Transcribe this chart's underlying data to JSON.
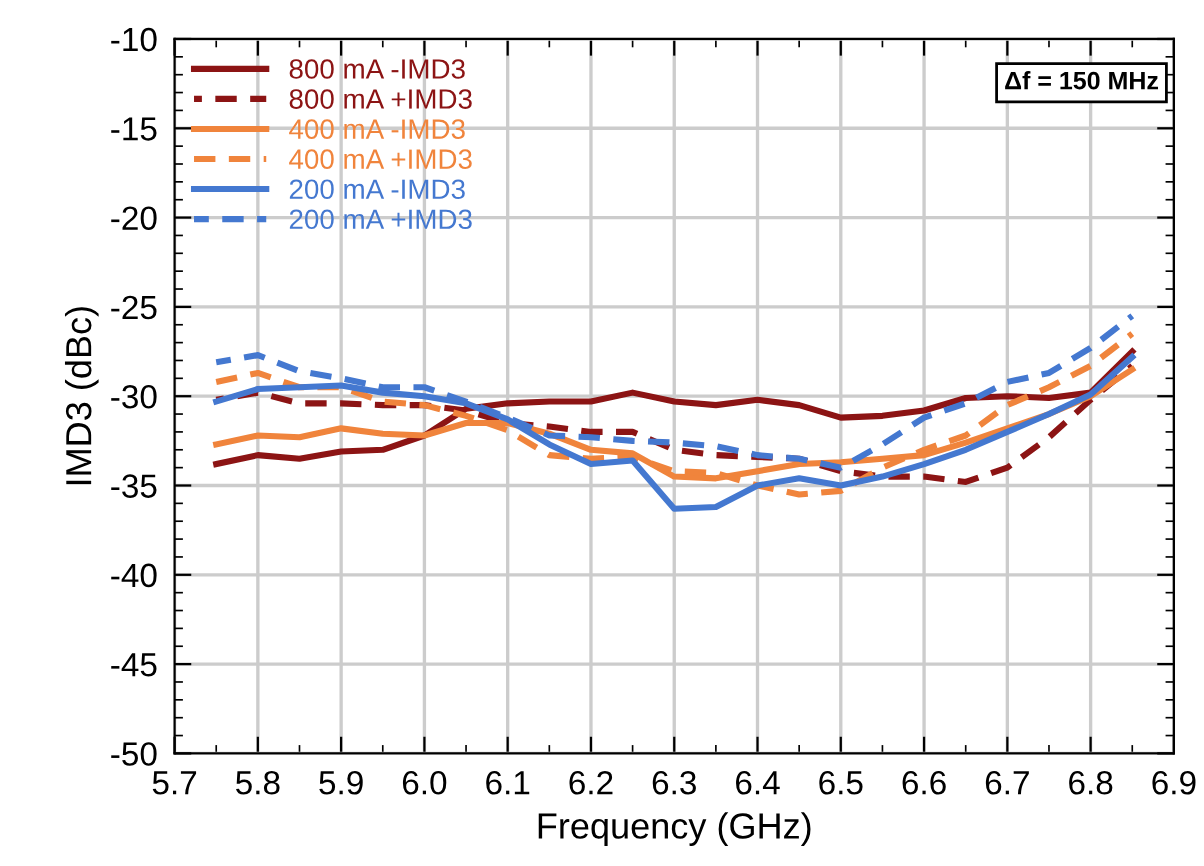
{
  "chart_data": {
    "type": "line",
    "xlabel": "Frequency (GHz)",
    "ylabel": "IMD3 (dBc)",
    "x": [
      5.75,
      5.8,
      5.85,
      5.9,
      5.95,
      6.0,
      6.05,
      6.1,
      6.15,
      6.2,
      6.25,
      6.3,
      6.35,
      6.4,
      6.45,
      6.5,
      6.55,
      6.6,
      6.65,
      6.7,
      6.75,
      6.8,
      6.85
    ],
    "series": [
      {
        "name": "800 mA -IMD3",
        "color": "#8c1414",
        "line_style": "solid",
        "values": [
          -33.8,
          -33.3,
          -33.5,
          -33.1,
          -33.0,
          -32.2,
          -30.7,
          -30.4,
          -30.3,
          -30.3,
          -29.8,
          -30.3,
          -30.5,
          -30.2,
          -30.5,
          -31.2,
          -31.1,
          -30.8,
          -30.1,
          -30.0,
          -30.1,
          -29.8,
          -27.5
        ]
      },
      {
        "name": "800 mA +IMD3",
        "color": "#8c1414",
        "line_style": "dashed",
        "values": [
          -30.2,
          -29.8,
          -30.4,
          -30.4,
          -30.5,
          -30.5,
          -30.8,
          -31.5,
          -31.7,
          -32.0,
          -32.0,
          -33.0,
          -33.3,
          -33.4,
          -33.5,
          -34.2,
          -34.5,
          -34.5,
          -34.8,
          -34.0,
          -32.3,
          -30.2,
          -28.3
        ]
      },
      {
        "name": "400 mA -IMD3",
        "color": "#f0843c",
        "line_style": "solid",
        "values": [
          -32.7,
          -32.2,
          -32.3,
          -31.8,
          -32.1,
          -32.2,
          -31.5,
          -31.5,
          -32.1,
          -33.0,
          -33.2,
          -34.5,
          -34.6,
          -34.2,
          -33.8,
          -33.7,
          -33.5,
          -33.3,
          -32.6,
          -31.8,
          -31.0,
          -30.0,
          -28.5
        ]
      },
      {
        "name": "400 mA +IMD3",
        "color": "#f0843c",
        "line_style": "dashed",
        "values": [
          -29.2,
          -28.7,
          -29.5,
          -29.5,
          -30.3,
          -30.5,
          -31.1,
          -31.9,
          -33.3,
          -33.5,
          -33.4,
          -34.2,
          -34.3,
          -35.0,
          -35.5,
          -35.3,
          -34.0,
          -33.0,
          -32.2,
          -30.5,
          -29.5,
          -28.3,
          -26.5
        ]
      },
      {
        "name": "200 mA -IMD3",
        "color": "#4478d0",
        "line_style": "solid",
        "values": [
          -30.3,
          -29.6,
          -29.5,
          -29.4,
          -29.8,
          -30.0,
          -30.4,
          -31.3,
          -32.7,
          -33.8,
          -33.6,
          -36.3,
          -36.2,
          -35.0,
          -34.6,
          -35.0,
          -34.5,
          -33.8,
          -33.0,
          -32.0,
          -31.0,
          -29.9,
          -27.8
        ]
      },
      {
        "name": "200 mA +IMD3",
        "color": "#4478d0",
        "line_style": "dashed",
        "values": [
          -28.1,
          -27.7,
          -28.6,
          -29.0,
          -29.5,
          -29.5,
          -30.3,
          -31.2,
          -32.2,
          -32.3,
          -32.5,
          -32.6,
          -32.8,
          -33.3,
          -33.5,
          -34.0,
          -32.7,
          -31.2,
          -30.4,
          -29.2,
          -28.7,
          -27.3,
          -25.5
        ]
      }
    ],
    "xlim": [
      5.7,
      6.9
    ],
    "xticks": [
      5.7,
      5.8,
      5.9,
      {
        "value": 6.0,
        "label": "6.0"
      },
      6.1,
      6.2,
      6.3,
      6.4,
      6.5,
      6.6,
      6.7,
      6.8,
      6.9
    ],
    "ylim": [
      -50,
      -10
    ],
    "yticks": [
      -50,
      -45,
      -40,
      -35,
      -30,
      -25,
      -20,
      -15,
      -10
    ],
    "grid": true,
    "legend": "top left",
    "marker": "none",
    "annotations": [
      "Δf = 150 MHz"
    ]
  }
}
